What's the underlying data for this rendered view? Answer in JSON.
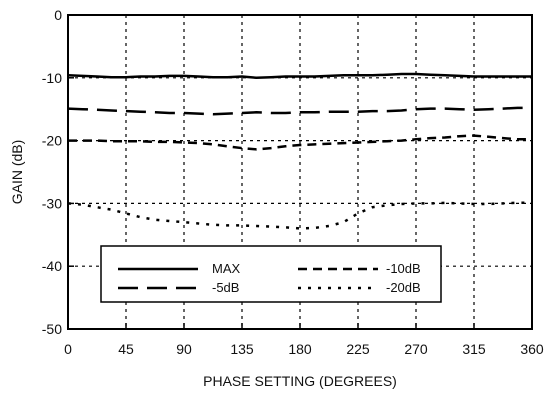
{
  "chart_data": {
    "type": "line",
    "xlabel": "PHASE SETTING (DEGREES)",
    "ylabel": "GAIN (dB)",
    "xlim": [
      0,
      360
    ],
    "ylim": [
      -50,
      0
    ],
    "xticks": [
      0,
      45,
      90,
      135,
      180,
      225,
      270,
      315,
      360
    ],
    "yticks": [
      0,
      -10,
      -20,
      -30,
      -40,
      -50
    ],
    "grid": true,
    "legend_position": "lower-left",
    "x": [
      0,
      11.25,
      22.5,
      33.75,
      45,
      56.25,
      67.5,
      78.75,
      90,
      101.25,
      112.5,
      123.75,
      135,
      146.25,
      157.5,
      168.75,
      180,
      191.25,
      202.5,
      213.75,
      225,
      236.25,
      247.5,
      258.75,
      270,
      281.25,
      292.5,
      303.75,
      315,
      326.25,
      337.5,
      348.75,
      360
    ],
    "series": [
      {
        "name": "MAX",
        "dash": "solid",
        "values": [
          -9.6,
          -9.7,
          -9.8,
          -9.9,
          -9.9,
          -9.8,
          -9.8,
          -9.7,
          -9.7,
          -9.8,
          -9.9,
          -9.9,
          -9.8,
          -10.0,
          -9.9,
          -9.8,
          -9.8,
          -9.8,
          -9.7,
          -9.6,
          -9.6,
          -9.6,
          -9.5,
          -9.4,
          -9.4,
          -9.5,
          -9.6,
          -9.7,
          -9.8,
          -9.8,
          -9.8,
          -9.8,
          -9.8
        ]
      },
      {
        "name": "-5dB",
        "dash": "long-dash",
        "values": [
          -14.9,
          -15.0,
          -15.1,
          -15.2,
          -15.3,
          -15.4,
          -15.5,
          -15.6,
          -15.6,
          -15.7,
          -15.8,
          -15.7,
          -15.6,
          -15.5,
          -15.6,
          -15.6,
          -15.5,
          -15.5,
          -15.4,
          -15.4,
          -15.4,
          -15.3,
          -15.3,
          -15.2,
          -15.0,
          -14.9,
          -14.9,
          -15.0,
          -15.1,
          -15.0,
          -14.9,
          -14.8,
          -14.8
        ]
      },
      {
        "name": "-10dB",
        "dash": "dash",
        "values": [
          -20.0,
          -20.0,
          -20.0,
          -20.1,
          -20.1,
          -20.1,
          -20.2,
          -20.2,
          -20.3,
          -20.4,
          -20.6,
          -20.9,
          -21.2,
          -21.4,
          -21.2,
          -20.9,
          -20.7,
          -20.6,
          -20.5,
          -20.4,
          -20.3,
          -20.2,
          -20.1,
          -20.0,
          -19.8,
          -19.6,
          -19.5,
          -19.3,
          -19.2,
          -19.4,
          -19.6,
          -19.8,
          -19.8
        ]
      },
      {
        "name": "-20dB",
        "dash": "dot",
        "values": [
          -30.0,
          -30.2,
          -30.6,
          -31.0,
          -31.6,
          -32.2,
          -32.6,
          -32.8,
          -33.0,
          -33.2,
          -33.4,
          -33.5,
          -33.5,
          -33.6,
          -33.7,
          -33.8,
          -34.0,
          -33.9,
          -33.6,
          -33.0,
          -31.6,
          -30.6,
          -30.3,
          -30.1,
          -30.0,
          -30.0,
          -29.9,
          -30.0,
          -30.1,
          -30.1,
          -30.0,
          -29.9,
          -29.9
        ]
      }
    ]
  }
}
